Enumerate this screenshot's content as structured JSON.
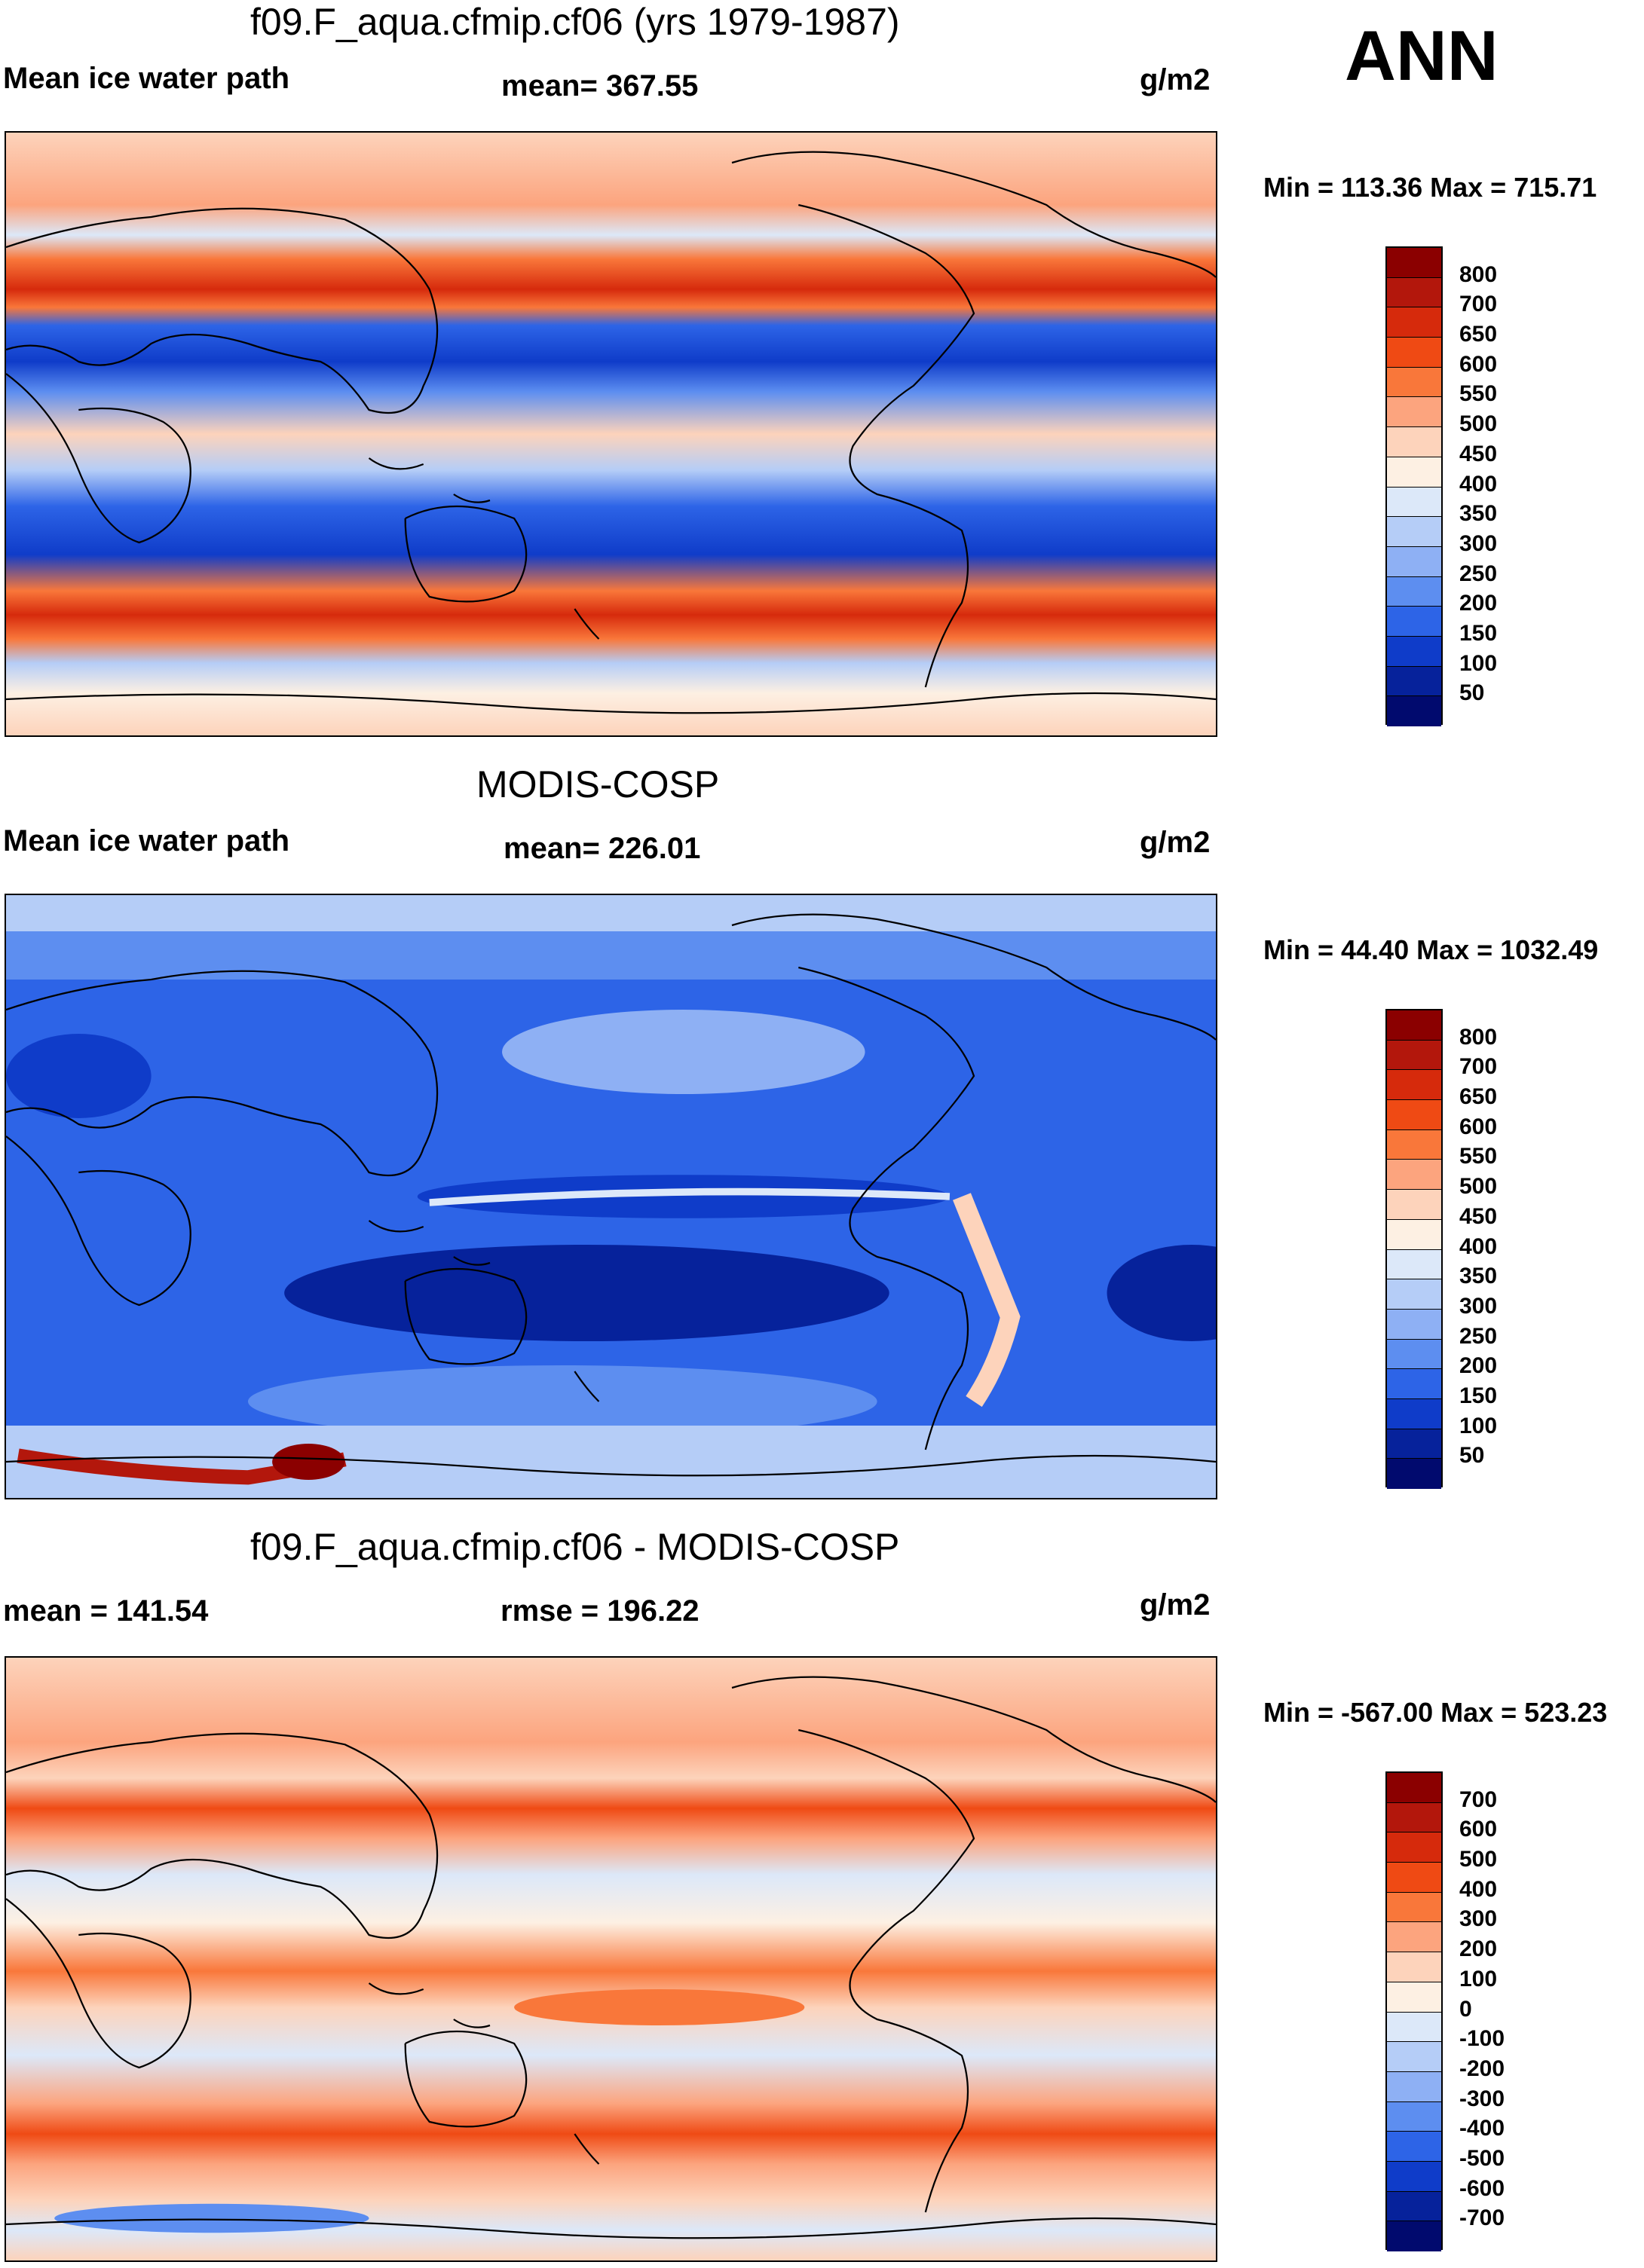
{
  "season": "ANN",
  "panels": [
    {
      "title": "f09.F_aqua.cfmip.cf06 (yrs 1979-1987)",
      "left_label": "Mean ice water path",
      "center_label": "mean= 367.55",
      "units": "g/m2",
      "minmax": "Min = 113.36 Max = 715.71",
      "colorbar": {
        "labels": [
          "800",
          "700",
          "650",
          "600",
          "550",
          "500",
          "450",
          "400",
          "350",
          "300",
          "250",
          "200",
          "150",
          "100",
          "50"
        ],
        "colors": [
          "#8b0000",
          "#b3170c",
          "#d62a0c",
          "#ef4a14",
          "#f9773a",
          "#fca47e",
          "#fdd3bb",
          "#fdf0e3",
          "#dce8f9",
          "#b5cdf7",
          "#8eb0f4",
          "#5d8ef0",
          "#2d64e7",
          "#0f3cc9",
          "#06229b",
          "#010a6e"
        ]
      }
    },
    {
      "title": "MODIS-COSP",
      "left_label": "Mean ice water path",
      "center_label": "mean= 226.01",
      "units": "g/m2",
      "minmax": "Min =  44.40 Max = 1032.49",
      "colorbar": {
        "labels": [
          "800",
          "700",
          "650",
          "600",
          "550",
          "500",
          "450",
          "400",
          "350",
          "300",
          "250",
          "200",
          "150",
          "100",
          "50"
        ],
        "colors": [
          "#8b0000",
          "#b3170c",
          "#d62a0c",
          "#ef4a14",
          "#f9773a",
          "#fca47e",
          "#fdd3bb",
          "#fdf0e3",
          "#dce8f9",
          "#b5cdf7",
          "#8eb0f4",
          "#5d8ef0",
          "#2d64e7",
          "#0f3cc9",
          "#06229b",
          "#010a6e"
        ]
      }
    },
    {
      "title": "f09.F_aqua.cfmip.cf06 - MODIS-COSP",
      "left_label": "mean = 141.54",
      "center_label": "rmse = 196.22",
      "units": "g/m2",
      "minmax": "Min = -567.00 Max = 523.23",
      "colorbar": {
        "labels": [
          "700",
          "600",
          "500",
          "400",
          "300",
          "200",
          "100",
          "0",
          "-100",
          "-200",
          "-300",
          "-400",
          "-500",
          "-600",
          "-700"
        ],
        "colors": [
          "#8b0000",
          "#b3170c",
          "#d62a0c",
          "#ef4a14",
          "#f9773a",
          "#fca47e",
          "#fdd3bb",
          "#fdf0e3",
          "#dce8f9",
          "#b5cdf7",
          "#8eb0f4",
          "#5d8ef0",
          "#2d64e7",
          "#0f3cc9",
          "#06229b",
          "#010a6e"
        ]
      }
    }
  ]
}
